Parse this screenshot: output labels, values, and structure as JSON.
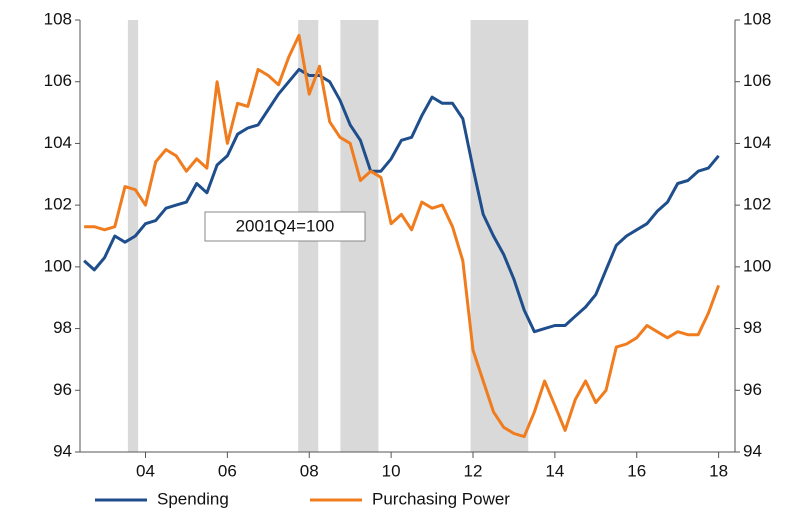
{
  "chart_data": {
    "type": "line",
    "annotation": "2001Q4=100",
    "x": [
      2002.5,
      2002.75,
      2003,
      2003.25,
      2003.5,
      2003.75,
      2004,
      2004.25,
      2004.5,
      2004.75,
      2005,
      2005.25,
      2005.5,
      2005.75,
      2006,
      2006.25,
      2006.5,
      2006.75,
      2007,
      2007.25,
      2007.5,
      2007.75,
      2008,
      2008.25,
      2008.5,
      2008.75,
      2009,
      2009.25,
      2009.5,
      2009.75,
      2010,
      2010.25,
      2010.5,
      2010.75,
      2011,
      2011.25,
      2011.5,
      2011.75,
      2012,
      2012.25,
      2012.5,
      2012.75,
      2013,
      2013.25,
      2013.5,
      2013.75,
      2014,
      2014.25,
      2014.5,
      2014.75,
      2015,
      2015.25,
      2015.5,
      2015.75,
      2016,
      2016.25,
      2016.5,
      2016.75,
      2017,
      2017.25,
      2017.5,
      2017.75,
      2018
    ],
    "series": [
      {
        "name": "Spending",
        "color": "#1f4e8c",
        "values": [
          100.2,
          99.9,
          100.3,
          101.0,
          100.8,
          101.0,
          101.4,
          101.5,
          101.9,
          102.0,
          102.1,
          102.7,
          102.4,
          103.3,
          103.6,
          104.3,
          104.5,
          104.6,
          105.1,
          105.6,
          106.0,
          106.4,
          106.2,
          106.2,
          106.0,
          105.4,
          104.6,
          104.1,
          103.1,
          103.1,
          103.5,
          104.1,
          104.2,
          104.9,
          105.5,
          105.3,
          105.3,
          104.8,
          103.2,
          101.7,
          101.0,
          100.4,
          99.6,
          98.6,
          97.9,
          98.0,
          98.1,
          98.1,
          98.4,
          98.7,
          99.1,
          99.9,
          100.7,
          101.0,
          101.2,
          101.4,
          101.8,
          102.1,
          102.7,
          102.8,
          103.1,
          103.2,
          103.6
        ]
      },
      {
        "name": "Purchasing Power",
        "color": "#f07c1e",
        "values": [
          101.3,
          101.3,
          101.2,
          101.3,
          102.6,
          102.5,
          102.0,
          103.4,
          103.8,
          103.6,
          103.1,
          103.5,
          103.2,
          106.0,
          104.0,
          105.3,
          105.2,
          106.4,
          106.2,
          105.9,
          106.8,
          107.5,
          105.6,
          106.5,
          104.7,
          104.2,
          104.0,
          102.8,
          103.1,
          102.9,
          101.4,
          101.7,
          101.2,
          102.1,
          101.9,
          102.0,
          101.3,
          100.2,
          97.3,
          96.3,
          95.3,
          94.8,
          94.6,
          94.5,
          95.3,
          96.3,
          95.5,
          94.7,
          95.7,
          96.3,
          95.6,
          96.0,
          97.4,
          97.5,
          97.7,
          98.1,
          97.9,
          97.7,
          97.9,
          97.8,
          97.8,
          98.5,
          99.4
        ]
      }
    ],
    "shaded_periods": [
      [
        2003.57,
        2003.82
      ],
      [
        2007.73,
        2008.22
      ],
      [
        2008.76,
        2009.69
      ],
      [
        2011.94,
        2013.35
      ]
    ],
    "shade_color": "#d9d9d9",
    "xlim": [
      2002.4,
      2018.4
    ],
    "xticks": [
      {
        "value": 2004,
        "label": "04"
      },
      {
        "value": 2006,
        "label": "06"
      },
      {
        "value": 2008,
        "label": "08"
      },
      {
        "value": 2010,
        "label": "10"
      },
      {
        "value": 2012,
        "label": "12"
      },
      {
        "value": 2014,
        "label": "14"
      },
      {
        "value": 2016,
        "label": "16"
      },
      {
        "value": 2018,
        "label": "18"
      }
    ],
    "ylim": [
      94,
      108
    ],
    "yticks": [
      94,
      96,
      98,
      100,
      102,
      104,
      106,
      108
    ],
    "y2lim": [
      94,
      108
    ],
    "y2ticks": [
      94,
      96,
      98,
      100,
      102,
      104,
      106,
      108
    ],
    "legend": "bottom"
  }
}
